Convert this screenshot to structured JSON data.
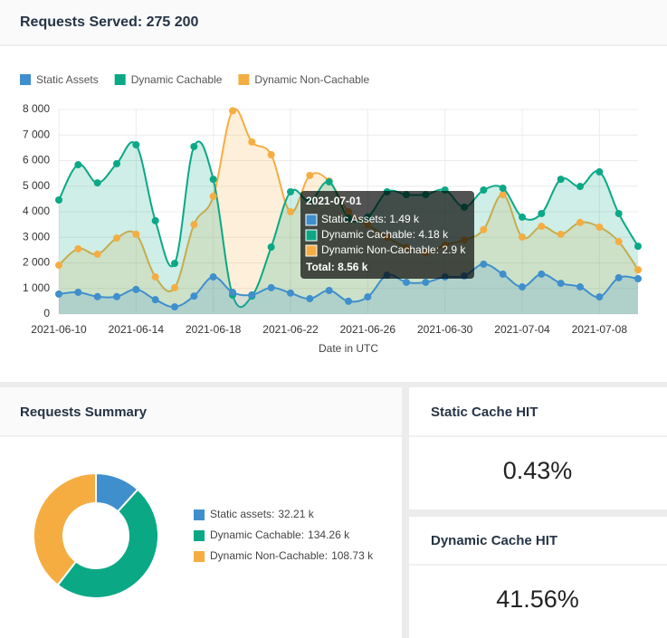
{
  "header": {
    "title": "Requests Served: 275 200"
  },
  "chart_data": [
    {
      "type": "line",
      "xlabel": "Date in UTC",
      "legend": "top-left",
      "categories": [
        "2021-06-10",
        null,
        null,
        null,
        "2021-06-14",
        null,
        null,
        null,
        "2021-06-18",
        null,
        null,
        null,
        "2021-06-22",
        null,
        null,
        null,
        "2021-06-26",
        null,
        null,
        null,
        "2021-06-30",
        null,
        null,
        null,
        "2021-07-04",
        null,
        null,
        null,
        "2021-07-08",
        null,
        null
      ],
      "ylim": [
        0,
        8000
      ],
      "yticks": [
        0,
        {
          "value": 1000,
          "label": "1 000"
        },
        {
          "value": 2000,
          "label": "2 000"
        },
        {
          "value": 3000,
          "label": "3 000"
        },
        {
          "value": 4000,
          "label": "4 000"
        },
        {
          "value": 5000,
          "label": "5 000"
        },
        {
          "value": 6000,
          "label": "6 000"
        },
        {
          "value": 7000,
          "label": "7 000"
        },
        {
          "value": 8000,
          "label": "8 000"
        }
      ],
      "grid": true,
      "series": [
        {
          "name": "Static Assets",
          "color": "#3f8fcd",
          "values": [
            780,
            850,
            680,
            680,
            960,
            560,
            280,
            700,
            1450,
            850,
            750,
            1030,
            820,
            600,
            920,
            500,
            670,
            1520,
            1240,
            1240,
            1450,
            1490,
            1950,
            1560,
            1060,
            1560,
            1200,
            1060,
            670,
            1420,
            1380
          ]
        },
        {
          "name": "Dynamic Cachable",
          "color": "#0ba886",
          "values": [
            4460,
            5840,
            5130,
            5880,
            6620,
            3650,
            1980,
            6550,
            5270,
            740,
            700,
            2620,
            4780,
            4420,
            5170,
            3750,
            3790,
            4780,
            4670,
            4670,
            4850,
            4180,
            4850,
            4920,
            3790,
            3930,
            5270,
            4990,
            5560,
            3930,
            2650
          ]
        },
        {
          "name": "Dynamic Non-Cachable",
          "color": "#f5ad42",
          "values": [
            1910,
            2550,
            2340,
            2970,
            3120,
            1450,
            1030,
            3500,
            4600,
            7950,
            6730,
            6230,
            4000,
            5420,
            5200,
            4000,
            3500,
            3000,
            2600,
            2400,
            2700,
            2900,
            3300,
            4670,
            3010,
            3430,
            3120,
            3580,
            3400,
            2830,
            1730
          ]
        }
      ],
      "tooltip": {
        "title": "2021-07-01",
        "lines": [
          "Static Assets: 1.49 k",
          "Dynamic Cachable: 4.18 k",
          "Dynamic Non-Cachable: 2.9 k"
        ],
        "total": "Total: 8.56 k"
      }
    },
    {
      "type": "pie",
      "title": "Requests Summary",
      "categories": [
        "Static assets:",
        "Dynamic Cachable:",
        "Dynamic Non-Cachable:"
      ],
      "values": [
        32.21,
        134.26,
        108.73
      ],
      "value_labels": [
        "32.21 k",
        "134.26 k",
        "108.73 k"
      ],
      "colors": [
        "#3f8fcd",
        "#0ba886",
        "#f5ad42"
      ]
    }
  ],
  "cards": [
    {
      "title": "Static Cache HIT",
      "value": "0.43%"
    },
    {
      "title": "Dynamic Cache HIT",
      "value": "41.56%"
    }
  ]
}
